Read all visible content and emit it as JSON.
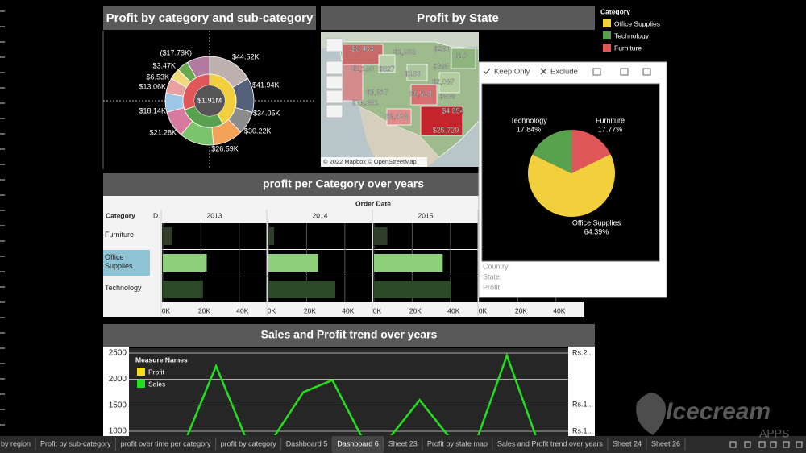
{
  "donut_panel": {
    "title": "Profit by category and sub-category",
    "center_label": "$1.91M",
    "labels": [
      "$44.52K",
      "$41.94K",
      "$34.05K",
      "$30.22K",
      "$26.59K",
      "$21.28K",
      "$18.14K",
      "$13.06K",
      "$6.53K",
      "$3.47K",
      "($17.73K)"
    ]
  },
  "map_panel": {
    "title": "Profit by State",
    "state_labels": [
      "$3,403",
      "$1,933",
      "$230",
      "$10",
      "$1,190",
      "$827",
      "$395",
      "$100",
      "$2,037",
      "$76,381",
      "$3,317",
      "$6,528",
      "$836",
      "$4,854",
      "$3,428",
      "$25,729"
    ],
    "attribution": "© 2022 Mapbox © OpenStreetMap"
  },
  "legend": {
    "title": "Category",
    "items": [
      {
        "name": "Office Supplies",
        "color": "#f2cf3d"
      },
      {
        "name": "Technology",
        "color": "#59a14f"
      },
      {
        "name": "Furniture",
        "color": "#e05759"
      }
    ]
  },
  "table_panel": {
    "title": "profit per Category over years",
    "column_header": "Order Date",
    "row_header": "Category",
    "detail_header": "D.",
    "years": [
      "2013",
      "2014",
      "2015"
    ],
    "rows": [
      "Furniture",
      "Office Supplies",
      "Technology"
    ],
    "xlim": [
      0,
      54000
    ],
    "xticks": [
      {
        "value": 0,
        "label": "0K"
      },
      {
        "value": 20000,
        "label": "20K"
      },
      {
        "value": 40000,
        "label": "40K"
      }
    ],
    "values": [
      [
        5000,
        3000,
        7000
      ],
      [
        23000,
        26000,
        36000
      ],
      [
        21000,
        35000,
        40000
      ]
    ],
    "bar_colors": [
      "#2f3d2b",
      "#8fd07c",
      "#2c4a28"
    ]
  },
  "tooltip": {
    "actions": [
      "Keep Only",
      "Exclude"
    ],
    "pie": {
      "type": "pie",
      "categories": [
        "Furniture",
        "Office Supplies",
        "Technology"
      ],
      "values": [
        17.77,
        64.39,
        17.84
      ],
      "value_labels": [
        "17.77%",
        "64.39%",
        "17.84%"
      ],
      "colors": [
        "#e05759",
        "#f2cf3d",
        "#59a14f"
      ]
    },
    "fields": [
      "Country:",
      "State:",
      "Profit:"
    ]
  },
  "trend_panel": {
    "title": "Sales and Profit trend over years",
    "ylim": [
      923,
      2593
    ],
    "yticks": [
      1000,
      1500,
      2000,
      2500
    ],
    "y2_labels": [
      "Rs.2,..",
      "Rs.1,..",
      "Rs.1,.."
    ],
    "legend_title": "Measure Names",
    "categories": [
      null,
      null,
      null,
      null,
      null,
      null,
      null,
      null,
      null,
      null,
      null,
      null,
      null
    ],
    "series": [
      {
        "name": "Profit",
        "color": "#f5e11a"
      },
      {
        "name": "Sales",
        "color": "#22e01e",
        "values": [
          900,
          2250,
          900,
          900,
          1750,
          1980,
          900,
          900,
          1600,
          900,
          900,
          2450,
          900
        ]
      }
    ]
  },
  "tabs": {
    "items": [
      "by region",
      "Profit by sub-category",
      "profit over time per category",
      "profit by category",
      "Dashboard 5",
      "Dashboard 6",
      "Sheet 23",
      "Profit by state map",
      "Sales and Profit trend over years",
      "Sheet 24",
      "Sheet 26"
    ],
    "active": 5
  },
  "watermark": {
    "brand": "Icecream",
    "sub": "APPS"
  }
}
